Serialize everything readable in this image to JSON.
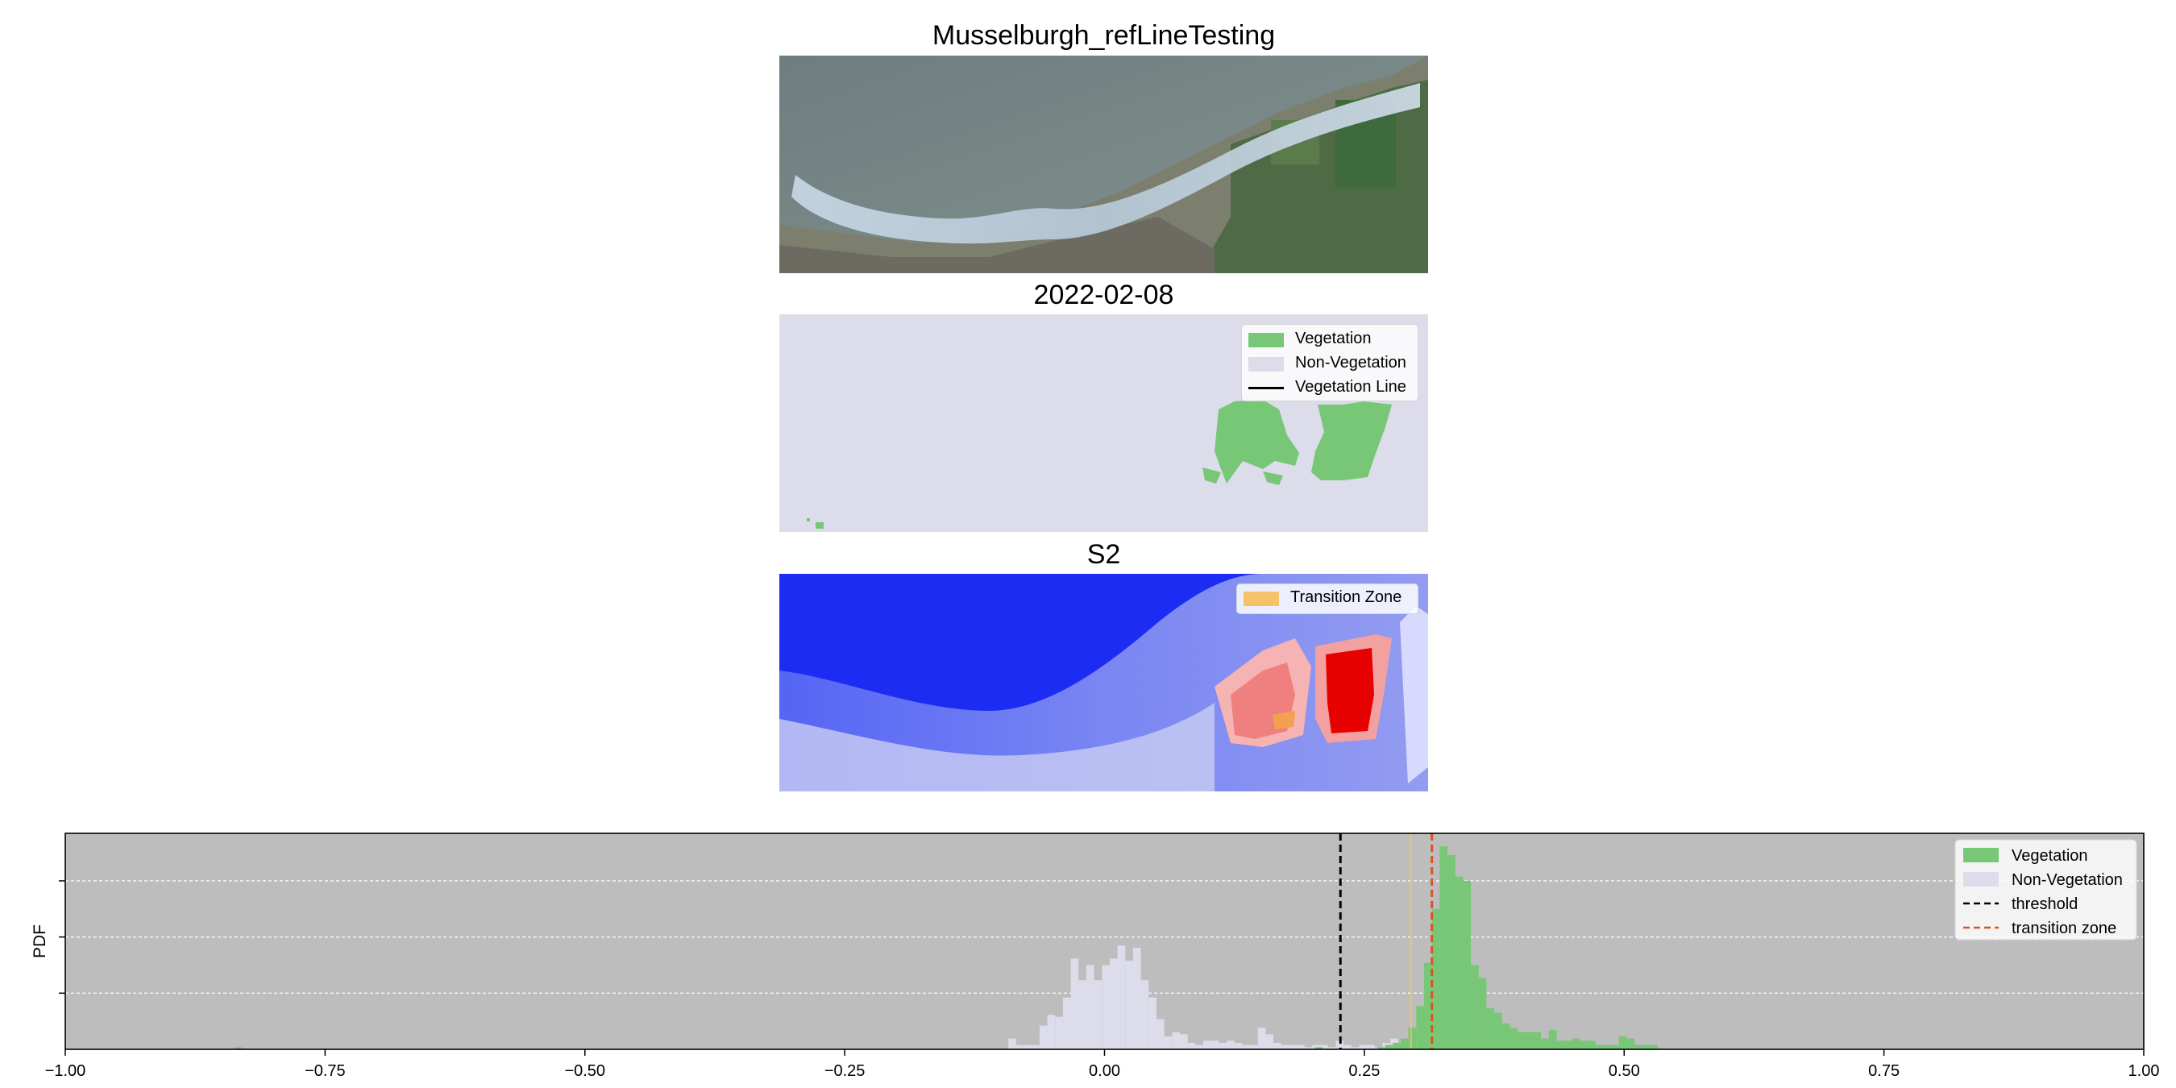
{
  "colors": {
    "vegetation": "#77c777",
    "non_vegetation": "#dcdcea",
    "threshold": "#000000",
    "transition_zone_line": "#d9541e",
    "transition_zone_fill": "#f5c26b",
    "hist_background": "#bdbdbd",
    "ndvi_low": "#0000ff",
    "ndvi_high": "#ff0000"
  },
  "panels": [
    {
      "title": "Musselburgh_refLineTesting",
      "type": "rgb-satellite-image"
    },
    {
      "title": "2022-02-08",
      "type": "classification-map",
      "legend": [
        {
          "label": "Vegetation",
          "kind": "patch",
          "color_key": "vegetation"
        },
        {
          "label": "Non-Vegetation",
          "kind": "patch",
          "color_key": "non_vegetation"
        },
        {
          "label": "Vegetation Line",
          "kind": "line",
          "color_key": "threshold"
        }
      ]
    },
    {
      "title": "S2",
      "type": "index-heatmap",
      "legend": [
        {
          "label": "Transition Zone",
          "kind": "patch",
          "color_key": "transition_zone_fill"
        }
      ]
    }
  ],
  "chart_data": {
    "type": "bar",
    "title": "",
    "xlabel": "",
    "ylabel": "PDF",
    "xlim": [
      -1.0,
      1.0
    ],
    "ylim": [
      0,
      1
    ],
    "x_ticks": [
      "−1.00",
      "−0.75",
      "−0.50",
      "−0.25",
      "0.00",
      "0.25",
      "0.50",
      "0.75",
      "1.00"
    ],
    "x_tick_values": [
      -1.0,
      -0.75,
      -0.5,
      -0.25,
      0.0,
      0.25,
      0.5,
      0.75,
      1.0
    ],
    "y_gridlines": [
      0.26,
      0.52,
      0.78
    ],
    "grid": "horizontal dashed, white",
    "legend_position": "top-right",
    "legend": [
      {
        "label": "Vegetation",
        "kind": "patch",
        "color_key": "vegetation"
      },
      {
        "label": "Non-Vegetation",
        "kind": "patch",
        "color_key": "non_vegetation"
      },
      {
        "label": "threshold",
        "kind": "dashed",
        "color_key": "threshold"
      },
      {
        "label": "transition zone",
        "kind": "dashed",
        "color_key": "transition_zone_line"
      }
    ],
    "bin_width": 0.0075,
    "series": [
      {
        "name": "Non-Vegetation",
        "color_key": "non_vegetation",
        "x": [
          -0.0925,
          -0.085,
          -0.0775,
          -0.07,
          -0.0625,
          -0.055,
          -0.0475,
          -0.04,
          -0.0325,
          -0.025,
          -0.0175,
          -0.01,
          -0.0025,
          0.005,
          0.0125,
          0.02,
          0.0275,
          0.035,
          0.0425,
          0.05,
          0.0575,
          0.065,
          0.0725,
          0.08,
          0.0875,
          0.095,
          0.1025,
          0.11,
          0.1175,
          0.125,
          0.1325,
          0.14,
          0.1475,
          0.155,
          0.1625,
          0.17,
          0.1775,
          0.185,
          0.1925,
          0.2,
          0.2075,
          0.215,
          0.2225,
          0.23,
          0.2375,
          0.245,
          0.2525,
          0.26,
          0.2675,
          0.275,
          0.2825,
          0.29,
          0.2975,
          0.305,
          0.3125
        ],
        "values": [
          0.05,
          0.02,
          0.02,
          0.02,
          0.11,
          0.16,
          0.15,
          0.24,
          0.42,
          0.32,
          0.39,
          0.32,
          0.39,
          0.42,
          0.48,
          0.41,
          0.47,
          0.32,
          0.24,
          0.14,
          0.06,
          0.08,
          0.07,
          0.03,
          0.02,
          0.04,
          0.04,
          0.03,
          0.04,
          0.03,
          0.02,
          0.02,
          0.1,
          0.07,
          0.03,
          0.02,
          0.02,
          0.02,
          0.01,
          0.02,
          0.02,
          0.01,
          0.04,
          0.02,
          0.01,
          0.02,
          0.02,
          0.01,
          0.03,
          0.05,
          0.03,
          0.02,
          0.05,
          0.02,
          0.01
        ]
      },
      {
        "name": "Vegetation",
        "color_key": "vegetation",
        "x": [
          -0.8375,
          0.2025,
          0.2625,
          0.27,
          0.2775,
          0.285,
          0.2925,
          0.3,
          0.3075,
          0.315,
          0.3225,
          0.33,
          0.3375,
          0.345,
          0.3525,
          0.36,
          0.3675,
          0.375,
          0.3825,
          0.39,
          0.3975,
          0.405,
          0.4125,
          0.42,
          0.4275,
          0.435,
          0.4425,
          0.45,
          0.4575,
          0.465,
          0.4725,
          0.48,
          0.4875,
          0.495,
          0.5025,
          0.51,
          0.5175,
          0.525
        ],
        "values": [
          0.01,
          0.01,
          0.01,
          0.02,
          0.03,
          0.05,
          0.1,
          0.2,
          0.4,
          0.65,
          0.94,
          0.9,
          0.8,
          0.78,
          0.39,
          0.33,
          0.19,
          0.17,
          0.12,
          0.1,
          0.08,
          0.08,
          0.08,
          0.05,
          0.09,
          0.04,
          0.04,
          0.05,
          0.04,
          0.04,
          0.02,
          0.02,
          0.02,
          0.06,
          0.05,
          0.02,
          0.02,
          0.02
        ]
      }
    ],
    "vertical_lines": [
      {
        "name": "threshold",
        "x": 0.227,
        "style": "dashed",
        "color_key": "threshold"
      },
      {
        "name": "transition zone",
        "x": 0.315,
        "style": "dashed",
        "color_key": "transition_zone_line"
      },
      {
        "name": "transition zone edge",
        "x": 0.295,
        "style": "solid-thin",
        "color_key": "transition_zone_fill"
      }
    ]
  }
}
